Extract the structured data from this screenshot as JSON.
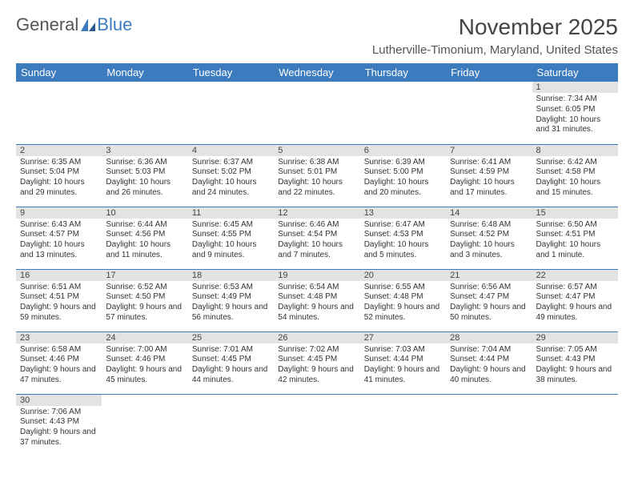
{
  "logo": {
    "text1": "General",
    "text2": "Blue"
  },
  "title": "November 2025",
  "location": "Lutherville-Timonium, Maryland, United States",
  "colors": {
    "header_bg": "#3d7bbf",
    "header_text": "#ffffff",
    "daynum_bg": "#e3e3e3",
    "border": "#3d7bbf"
  },
  "day_headers": [
    "Sunday",
    "Monday",
    "Tuesday",
    "Wednesday",
    "Thursday",
    "Friday",
    "Saturday"
  ],
  "weeks": [
    [
      null,
      null,
      null,
      null,
      null,
      null,
      {
        "n": "1",
        "sunrise": "Sunrise: 7:34 AM",
        "sunset": "Sunset: 6:05 PM",
        "daylight": "Daylight: 10 hours and 31 minutes."
      }
    ],
    [
      {
        "n": "2",
        "sunrise": "Sunrise: 6:35 AM",
        "sunset": "Sunset: 5:04 PM",
        "daylight": "Daylight: 10 hours and 29 minutes."
      },
      {
        "n": "3",
        "sunrise": "Sunrise: 6:36 AM",
        "sunset": "Sunset: 5:03 PM",
        "daylight": "Daylight: 10 hours and 26 minutes."
      },
      {
        "n": "4",
        "sunrise": "Sunrise: 6:37 AM",
        "sunset": "Sunset: 5:02 PM",
        "daylight": "Daylight: 10 hours and 24 minutes."
      },
      {
        "n": "5",
        "sunrise": "Sunrise: 6:38 AM",
        "sunset": "Sunset: 5:01 PM",
        "daylight": "Daylight: 10 hours and 22 minutes."
      },
      {
        "n": "6",
        "sunrise": "Sunrise: 6:39 AM",
        "sunset": "Sunset: 5:00 PM",
        "daylight": "Daylight: 10 hours and 20 minutes."
      },
      {
        "n": "7",
        "sunrise": "Sunrise: 6:41 AM",
        "sunset": "Sunset: 4:59 PM",
        "daylight": "Daylight: 10 hours and 17 minutes."
      },
      {
        "n": "8",
        "sunrise": "Sunrise: 6:42 AM",
        "sunset": "Sunset: 4:58 PM",
        "daylight": "Daylight: 10 hours and 15 minutes."
      }
    ],
    [
      {
        "n": "9",
        "sunrise": "Sunrise: 6:43 AM",
        "sunset": "Sunset: 4:57 PM",
        "daylight": "Daylight: 10 hours and 13 minutes."
      },
      {
        "n": "10",
        "sunrise": "Sunrise: 6:44 AM",
        "sunset": "Sunset: 4:56 PM",
        "daylight": "Daylight: 10 hours and 11 minutes."
      },
      {
        "n": "11",
        "sunrise": "Sunrise: 6:45 AM",
        "sunset": "Sunset: 4:55 PM",
        "daylight": "Daylight: 10 hours and 9 minutes."
      },
      {
        "n": "12",
        "sunrise": "Sunrise: 6:46 AM",
        "sunset": "Sunset: 4:54 PM",
        "daylight": "Daylight: 10 hours and 7 minutes."
      },
      {
        "n": "13",
        "sunrise": "Sunrise: 6:47 AM",
        "sunset": "Sunset: 4:53 PM",
        "daylight": "Daylight: 10 hours and 5 minutes."
      },
      {
        "n": "14",
        "sunrise": "Sunrise: 6:48 AM",
        "sunset": "Sunset: 4:52 PM",
        "daylight": "Daylight: 10 hours and 3 minutes."
      },
      {
        "n": "15",
        "sunrise": "Sunrise: 6:50 AM",
        "sunset": "Sunset: 4:51 PM",
        "daylight": "Daylight: 10 hours and 1 minute."
      }
    ],
    [
      {
        "n": "16",
        "sunrise": "Sunrise: 6:51 AM",
        "sunset": "Sunset: 4:51 PM",
        "daylight": "Daylight: 9 hours and 59 minutes."
      },
      {
        "n": "17",
        "sunrise": "Sunrise: 6:52 AM",
        "sunset": "Sunset: 4:50 PM",
        "daylight": "Daylight: 9 hours and 57 minutes."
      },
      {
        "n": "18",
        "sunrise": "Sunrise: 6:53 AM",
        "sunset": "Sunset: 4:49 PM",
        "daylight": "Daylight: 9 hours and 56 minutes."
      },
      {
        "n": "19",
        "sunrise": "Sunrise: 6:54 AM",
        "sunset": "Sunset: 4:48 PM",
        "daylight": "Daylight: 9 hours and 54 minutes."
      },
      {
        "n": "20",
        "sunrise": "Sunrise: 6:55 AM",
        "sunset": "Sunset: 4:48 PM",
        "daylight": "Daylight: 9 hours and 52 minutes."
      },
      {
        "n": "21",
        "sunrise": "Sunrise: 6:56 AM",
        "sunset": "Sunset: 4:47 PM",
        "daylight": "Daylight: 9 hours and 50 minutes."
      },
      {
        "n": "22",
        "sunrise": "Sunrise: 6:57 AM",
        "sunset": "Sunset: 4:47 PM",
        "daylight": "Daylight: 9 hours and 49 minutes."
      }
    ],
    [
      {
        "n": "23",
        "sunrise": "Sunrise: 6:58 AM",
        "sunset": "Sunset: 4:46 PM",
        "daylight": "Daylight: 9 hours and 47 minutes."
      },
      {
        "n": "24",
        "sunrise": "Sunrise: 7:00 AM",
        "sunset": "Sunset: 4:46 PM",
        "daylight": "Daylight: 9 hours and 45 minutes."
      },
      {
        "n": "25",
        "sunrise": "Sunrise: 7:01 AM",
        "sunset": "Sunset: 4:45 PM",
        "daylight": "Daylight: 9 hours and 44 minutes."
      },
      {
        "n": "26",
        "sunrise": "Sunrise: 7:02 AM",
        "sunset": "Sunset: 4:45 PM",
        "daylight": "Daylight: 9 hours and 42 minutes."
      },
      {
        "n": "27",
        "sunrise": "Sunrise: 7:03 AM",
        "sunset": "Sunset: 4:44 PM",
        "daylight": "Daylight: 9 hours and 41 minutes."
      },
      {
        "n": "28",
        "sunrise": "Sunrise: 7:04 AM",
        "sunset": "Sunset: 4:44 PM",
        "daylight": "Daylight: 9 hours and 40 minutes."
      },
      {
        "n": "29",
        "sunrise": "Sunrise: 7:05 AM",
        "sunset": "Sunset: 4:43 PM",
        "daylight": "Daylight: 9 hours and 38 minutes."
      }
    ],
    [
      {
        "n": "30",
        "sunrise": "Sunrise: 7:06 AM",
        "sunset": "Sunset: 4:43 PM",
        "daylight": "Daylight: 9 hours and 37 minutes."
      },
      null,
      null,
      null,
      null,
      null,
      null
    ]
  ]
}
